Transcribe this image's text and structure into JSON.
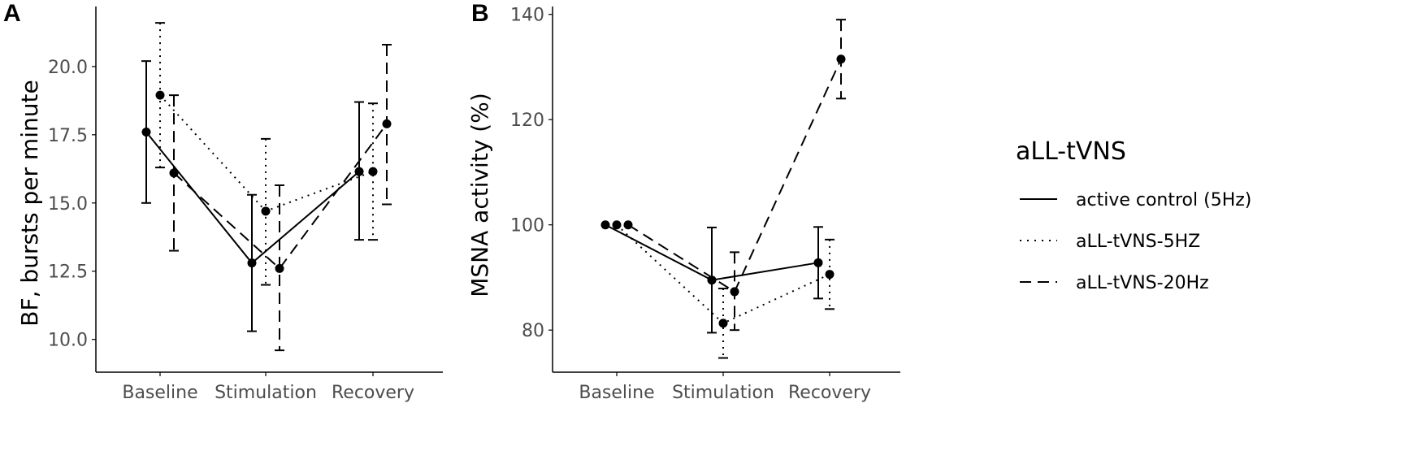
{
  "chart_data": [
    {
      "panel": "A",
      "type": "line",
      "title": "",
      "xlabel": "",
      "ylabel": "BF, bursts per minute",
      "categories": [
        "Baseline",
        "Stimulation",
        "Recovery"
      ],
      "ylim": [
        8.8,
        22.2
      ],
      "yticks": [
        10.0,
        12.5,
        15.0,
        17.5,
        20.0
      ],
      "ytick_labels": [
        "10.0",
        "12.5",
        "15.0",
        "17.5",
        "20.0"
      ],
      "grid": false,
      "series": [
        {
          "name": "active control (5Hz)",
          "linestyle": "solid",
          "values": [
            17.6,
            12.8,
            16.15
          ],
          "lower": [
            15.0,
            10.3,
            13.65
          ],
          "upper": [
            20.2,
            15.3,
            18.7
          ]
        },
        {
          "name": "aLL-tVNS-5HZ",
          "linestyle": "dotted",
          "values": [
            18.95,
            14.7,
            16.15
          ],
          "lower": [
            16.3,
            12.0,
            13.65
          ],
          "upper": [
            21.6,
            17.35,
            18.65
          ]
        },
        {
          "name": "aLL-tVNS-20Hz",
          "linestyle": "dashed",
          "values": [
            16.1,
            12.6,
            17.9
          ],
          "lower": [
            13.25,
            9.6,
            14.95
          ],
          "upper": [
            18.95,
            15.65,
            20.8
          ]
        }
      ]
    },
    {
      "panel": "B",
      "type": "line",
      "title": "",
      "xlabel": "",
      "ylabel": "MSNA activity (%)",
      "categories": [
        "Baseline",
        "Stimulation",
        "Recovery"
      ],
      "ylim": [
        72,
        141.5
      ],
      "yticks": [
        80,
        100,
        120,
        140
      ],
      "ytick_labels": [
        "80",
        "100",
        "120",
        "140"
      ],
      "grid": false,
      "series": [
        {
          "name": "active control (5Hz)",
          "linestyle": "solid",
          "values": [
            100,
            89.5,
            92.8
          ],
          "lower": [
            100,
            79.5,
            86.0
          ],
          "upper": [
            100,
            99.5,
            99.6
          ]
        },
        {
          "name": "aLL-tVNS-5HZ",
          "linestyle": "dotted",
          "values": [
            100,
            81.3,
            90.6
          ],
          "lower": [
            100,
            74.7,
            84.0
          ],
          "upper": [
            100,
            87.9,
            97.2
          ]
        },
        {
          "name": "aLL-tVNS-20Hz",
          "linestyle": "dashed",
          "values": [
            100,
            87.3,
            131.5
          ],
          "lower": [
            100,
            80.0,
            124.0
          ],
          "upper": [
            100,
            94.8,
            139.0
          ]
        }
      ]
    }
  ],
  "legend": {
    "title": "aLL-tVNS",
    "placement": "right",
    "entries": [
      {
        "label": "active control (5Hz)",
        "linestyle": "solid"
      },
      {
        "label": "aLL-tVNS-5HZ",
        "linestyle": "dotted"
      },
      {
        "label": "aLL-tVNS-20Hz",
        "linestyle": "dashed"
      }
    ]
  },
  "colors": {
    "line": "#000000",
    "axis": "#000000",
    "tick_text": "#4d4d4d",
    "background": "#ffffff"
  }
}
